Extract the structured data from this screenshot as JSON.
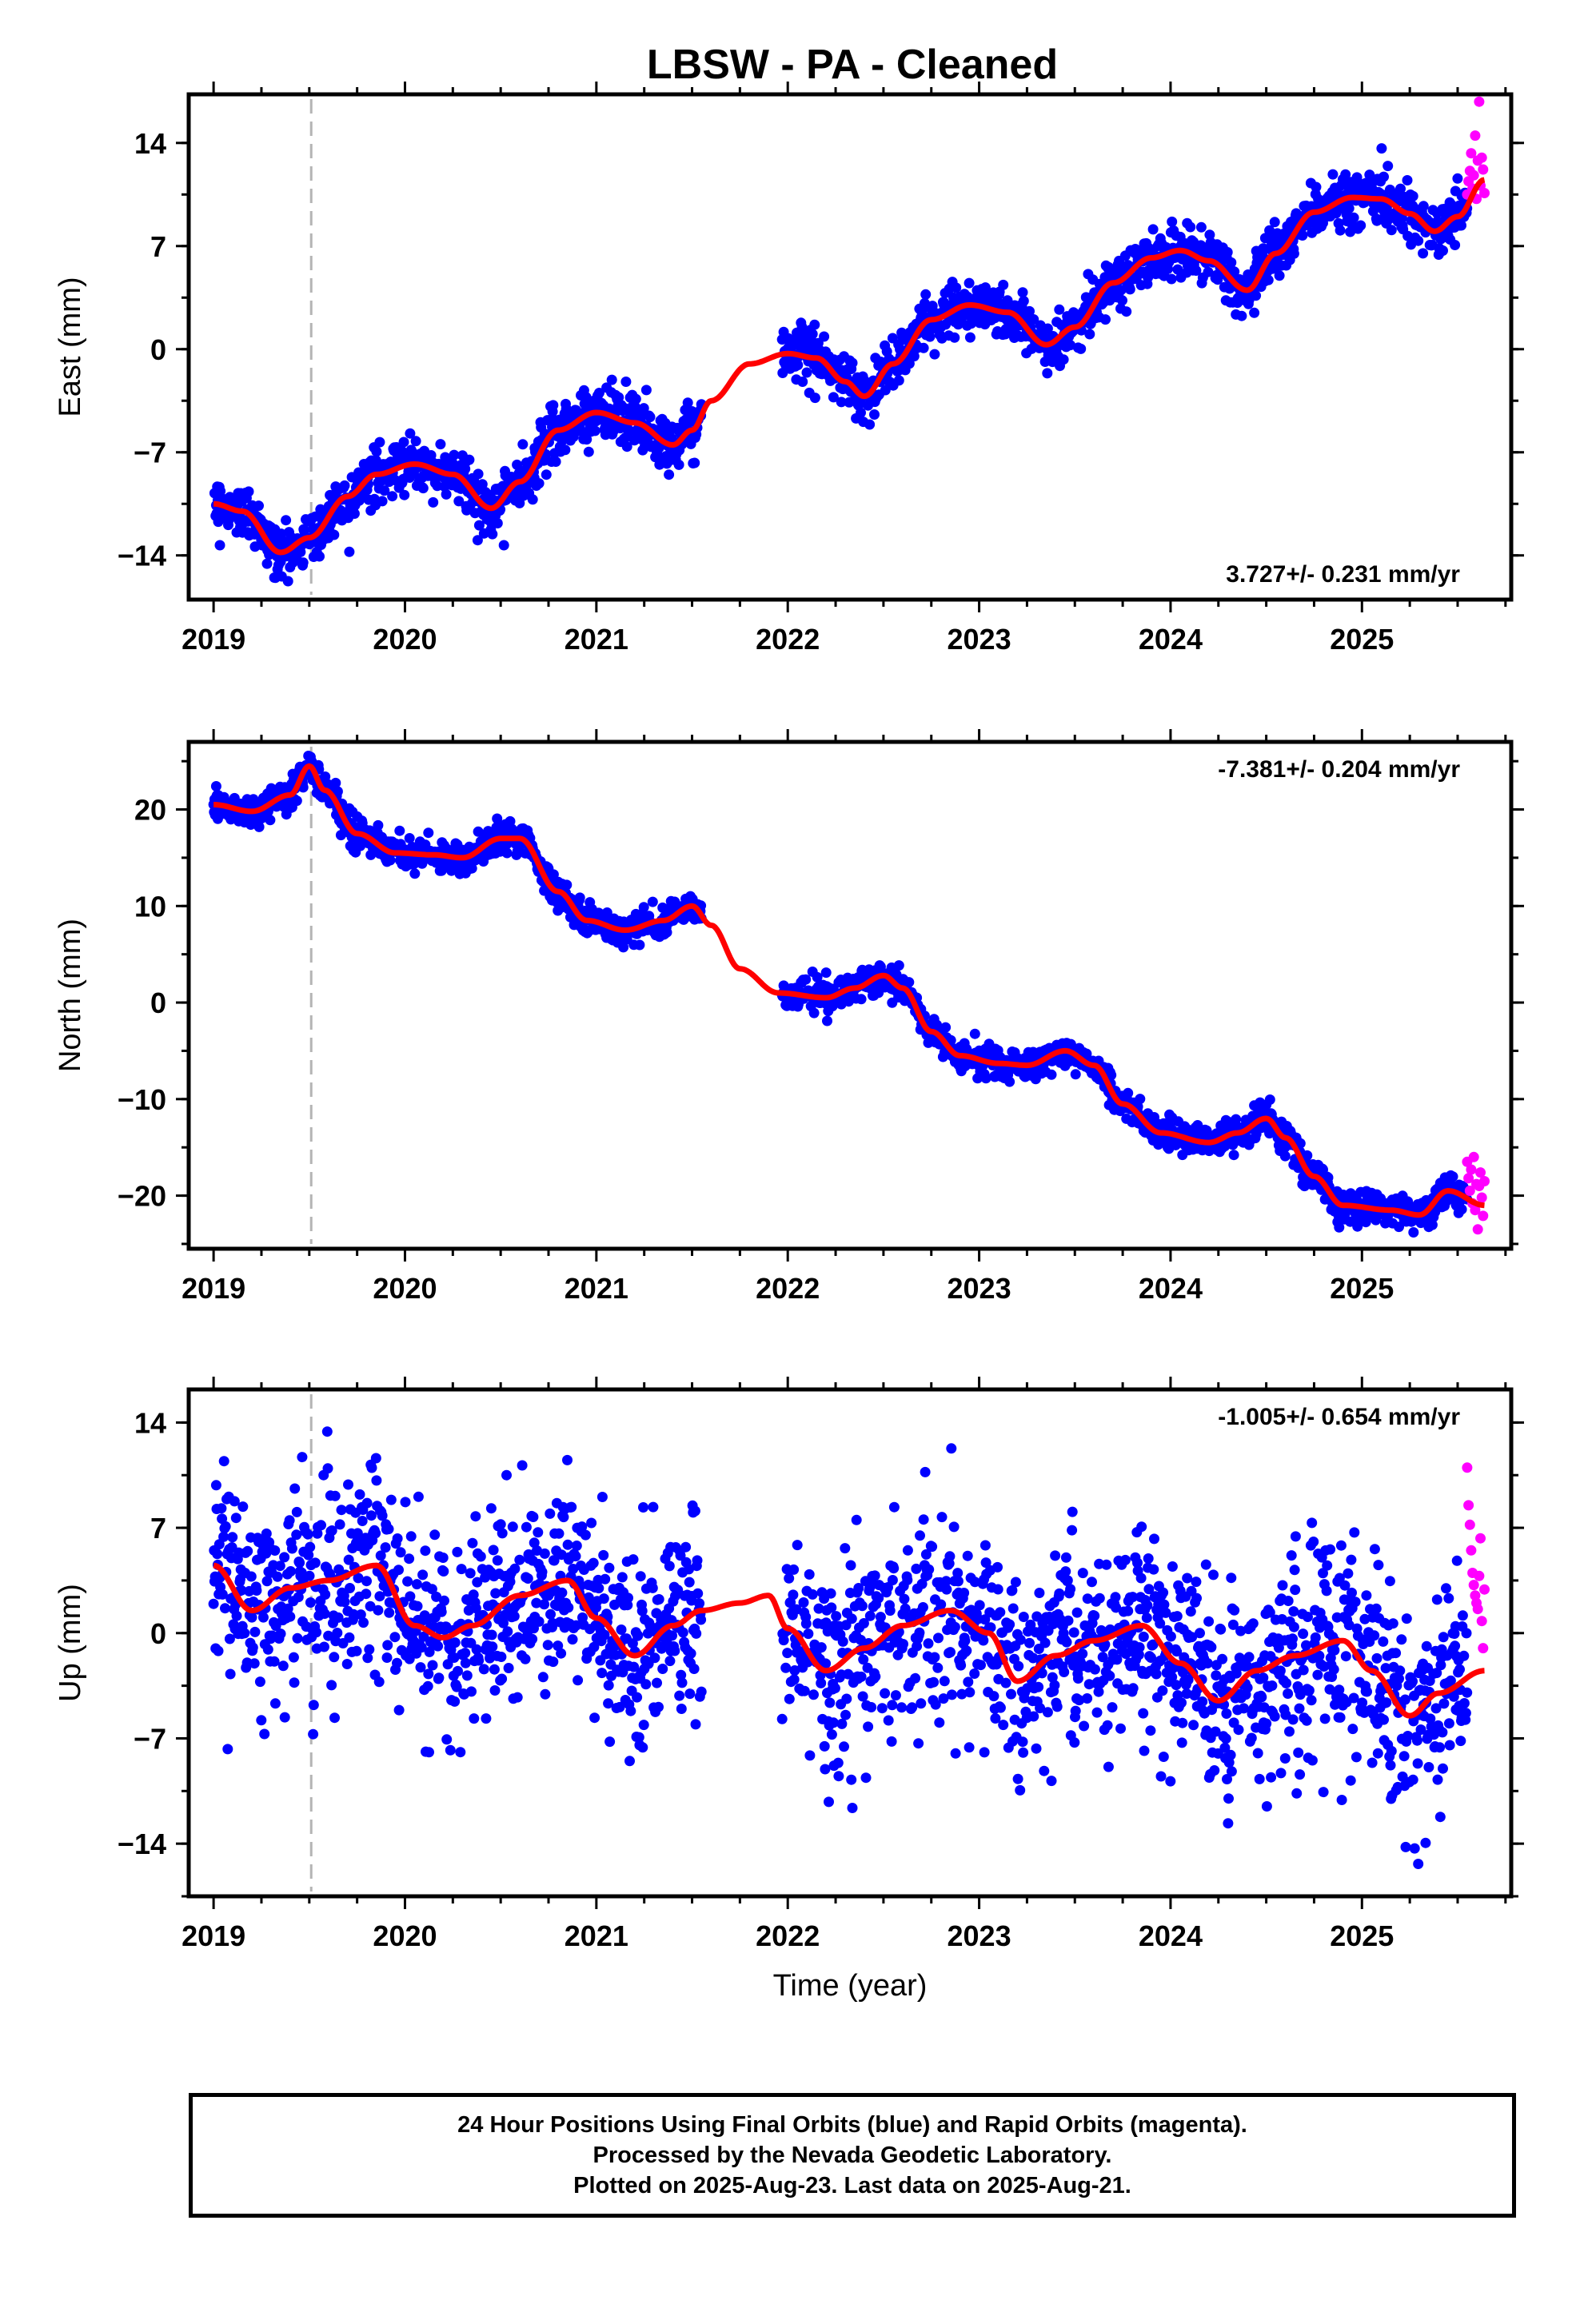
{
  "title": "LBSW  - PA - Cleaned",
  "colors": {
    "final_orbits": "#0000ff",
    "rapid_orbits": "#ff00ff",
    "model_fit": "#ff0000",
    "marker_line": "#b4b4b4"
  },
  "footer": {
    "line1": "24 Hour Positions Using Final Orbits (blue) and Rapid Orbits (magenta).",
    "line2": "Processed by the Nevada Geodetic Laboratory.",
    "line3": "Plotted on 2025-Aug-23. Last data on 2025-Aug-21."
  },
  "chart_data": [
    {
      "type": "scatter",
      "component": "east",
      "ylabel": "East (mm)",
      "rate_text": "3.727+/- 0.231 mm/yr",
      "xlim": [
        2018.87,
        2025.78
      ],
      "ylim": [
        -17,
        17.3
      ],
      "xticks": [
        "2019",
        "2020",
        "2021",
        "2022",
        "2023",
        "2024",
        "2025"
      ],
      "yticks": [
        "14",
        "7",
        "0",
        "-7",
        "-14"
      ],
      "equipment_change": 2019.51,
      "final_range": [
        2019.0,
        2025.55
      ],
      "rapid_range": [
        2025.55,
        2025.64
      ],
      "data_gap": [
        2021.55,
        2021.97
      ],
      "fit": {
        "x": [
          2019.0,
          2019.15,
          2019.35,
          2019.5,
          2019.7,
          2019.85,
          2020.05,
          2020.25,
          2020.45,
          2020.6,
          2020.8,
          2021.0,
          2021.2,
          2021.4,
          2021.5,
          2021.6,
          2021.8,
          2022.0,
          2022.15,
          2022.3,
          2022.4,
          2022.55,
          2022.75,
          2022.95,
          2023.15,
          2023.35,
          2023.5,
          2023.7,
          2023.9,
          2024.05,
          2024.2,
          2024.4,
          2024.55,
          2024.75,
          2024.95,
          2025.1,
          2025.25,
          2025.38,
          2025.5,
          2025.64
        ],
        "y": [
          -10.5,
          -11.0,
          -13.8,
          -12.8,
          -10.0,
          -8.5,
          -7.8,
          -8.5,
          -10.8,
          -9.0,
          -5.5,
          -4.3,
          -5.0,
          -6.5,
          -5.5,
          -3.5,
          -1.0,
          -0.3,
          -0.6,
          -2.2,
          -3.2,
          -1.0,
          2.0,
          3.0,
          2.5,
          0.3,
          1.5,
          4.5,
          6.2,
          6.7,
          6.0,
          4.0,
          6.5,
          9.3,
          10.3,
          10.2,
          9.2,
          8.0,
          9.0,
          11.5
        ]
      },
      "noise_sd": 0.9,
      "rapid_y": [
        10.5,
        11.4,
        12.1,
        13.3,
        10.9,
        11.8,
        14.5,
        10.2,
        12.8,
        16.8,
        11.1,
        13.0,
        12.2,
        10.6
      ]
    },
    {
      "type": "scatter",
      "component": "north",
      "ylabel": "North (mm)",
      "rate_text": "-7.381+/- 0.204 mm/yr",
      "xlim": [
        2018.87,
        2025.78
      ],
      "ylim": [
        -25.5,
        27
      ],
      "xticks": [
        "2019",
        "2020",
        "2021",
        "2022",
        "2023",
        "2024",
        "2025"
      ],
      "yticks": [
        "20",
        "10",
        "0",
        "-10",
        "-20"
      ],
      "equipment_change": 2019.51,
      "final_range": [
        2019.0,
        2025.55
      ],
      "rapid_range": [
        2025.55,
        2025.64
      ],
      "data_gap": [
        2021.55,
        2021.97
      ],
      "fit": {
        "x": [
          2019.0,
          2019.2,
          2019.4,
          2019.5,
          2019.58,
          2019.75,
          2019.95,
          2020.15,
          2020.3,
          2020.5,
          2020.6,
          2020.8,
          2020.95,
          2021.15,
          2021.35,
          2021.5,
          2021.6,
          2021.75,
          2021.95,
          2022.2,
          2022.35,
          2022.5,
          2022.6,
          2022.75,
          2022.9,
          2023.1,
          2023.25,
          2023.45,
          2023.6,
          2023.75,
          2023.95,
          2024.2,
          2024.35,
          2024.5,
          2024.6,
          2024.75,
          2024.9,
          2025.15,
          2025.3,
          2025.45,
          2025.64
        ],
        "y": [
          20.5,
          19.8,
          21.5,
          24.5,
          22.0,
          17.5,
          15.5,
          15.3,
          15.0,
          17.0,
          17.0,
          11.5,
          8.5,
          7.5,
          8.5,
          10.0,
          8.0,
          3.5,
          1.0,
          0.5,
          1.5,
          2.8,
          1.5,
          -3.0,
          -5.5,
          -6.3,
          -6.5,
          -5.0,
          -6.5,
          -10.5,
          -13.5,
          -14.5,
          -13.5,
          -12.0,
          -14.0,
          -18.0,
          -21.0,
          -21.5,
          -22.0,
          -19.5,
          -21.0
        ]
      },
      "noise_sd": 0.8,
      "rapid_y": [
        -16.5,
        -18.2,
        -19.5,
        -17.3,
        -20.8,
        -16.0,
        -21.5,
        -18.8,
        -23.5,
        -19.0,
        -17.6,
        -20.2,
        -22.1,
        -18.5
      ]
    },
    {
      "type": "scatter",
      "component": "up",
      "ylabel": "Up (mm)",
      "xlabel": "Time (year)",
      "rate_text": "-1.005+/- 0.654 mm/yr",
      "xlim": [
        2018.87,
        2025.78
      ],
      "ylim": [
        -17.5,
        16.2
      ],
      "xticks": [
        "2019",
        "2020",
        "2021",
        "2022",
        "2023",
        "2024",
        "2025"
      ],
      "yticks": [
        "14",
        "7",
        "0",
        "-7",
        "-14"
      ],
      "equipment_change": 2019.51,
      "final_range": [
        2019.0,
        2025.55
      ],
      "rapid_range": [
        2025.55,
        2025.64
      ],
      "data_gap": [
        2021.55,
        2021.97
      ],
      "fit": {
        "x": [
          2019.0,
          2019.2,
          2019.4,
          2019.6,
          2019.85,
          2020.05,
          2020.2,
          2020.35,
          2020.6,
          2020.85,
          2021.0,
          2021.2,
          2021.4,
          2021.55,
          2021.75,
          2021.9,
          2022.0,
          2022.2,
          2022.4,
          2022.6,
          2022.85,
          2023.05,
          2023.2,
          2023.4,
          2023.6,
          2023.85,
          2024.05,
          2024.25,
          2024.45,
          2024.65,
          2024.9,
          2025.05,
          2025.25,
          2025.4,
          2025.64
        ],
        "y": [
          4.5,
          1.5,
          3.0,
          3.5,
          4.5,
          0.5,
          -0.3,
          0.5,
          2.5,
          3.5,
          1.0,
          -1.5,
          0.5,
          1.5,
          2.0,
          2.5,
          0.3,
          -2.5,
          -1.0,
          0.5,
          1.5,
          0.0,
          -3.2,
          -1.5,
          -0.5,
          0.5,
          -2.0,
          -4.5,
          -2.5,
          -1.5,
          -0.5,
          -2.5,
          -5.5,
          -4.0,
          -2.5
        ]
      },
      "noise_sd": 3.3,
      "rapid_y": [
        11.0,
        8.5,
        7.2,
        5.5,
        4.0,
        3.2,
        2.5,
        2.0,
        1.6,
        3.8,
        6.3,
        0.8,
        -1.0,
        2.9
      ]
    }
  ]
}
